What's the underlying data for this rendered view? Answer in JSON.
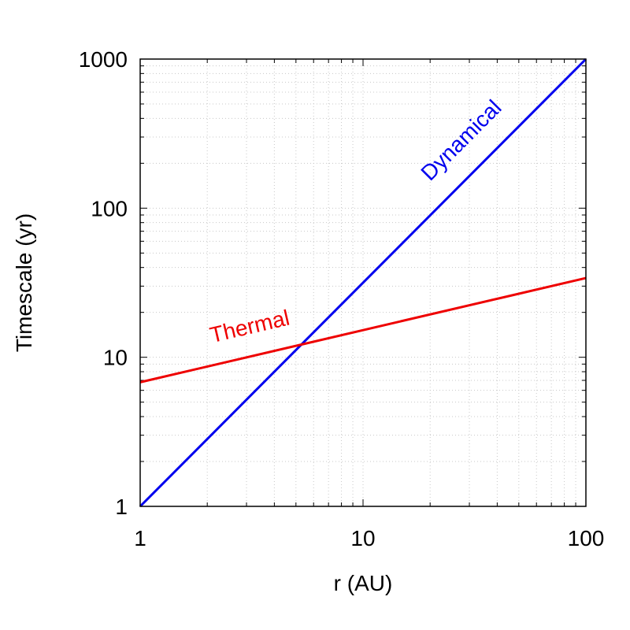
{
  "chart_data": {
    "type": "line",
    "title": "",
    "xlabel": "r (AU)",
    "ylabel": "Timescale (yr)",
    "xscale": "log",
    "yscale": "log",
    "xlim": [
      1,
      100
    ],
    "ylim": [
      1,
      1000
    ],
    "grid": true,
    "legend": "none",
    "x_ticks": [
      {
        "value": 1,
        "label": "1"
      },
      {
        "value": 10,
        "label": "10"
      },
      {
        "value": 100,
        "label": "100"
      }
    ],
    "y_ticks": [
      {
        "value": 1,
        "label": "1"
      },
      {
        "value": 10,
        "label": "10"
      },
      {
        "value": 100,
        "label": "100"
      },
      {
        "value": 1000,
        "label": "1000"
      }
    ],
    "series": [
      {
        "name": "Dynamical",
        "color": "#0000ee",
        "x": [
          1,
          100
        ],
        "y": [
          1,
          1000
        ],
        "label_x": 20,
        "label_y": 150
      },
      {
        "name": "Thermal",
        "color": "#ee0000",
        "x": [
          1,
          100
        ],
        "y": [
          6.8,
          34
        ],
        "label_x": 2.1,
        "label_y": 12.5
      }
    ]
  }
}
